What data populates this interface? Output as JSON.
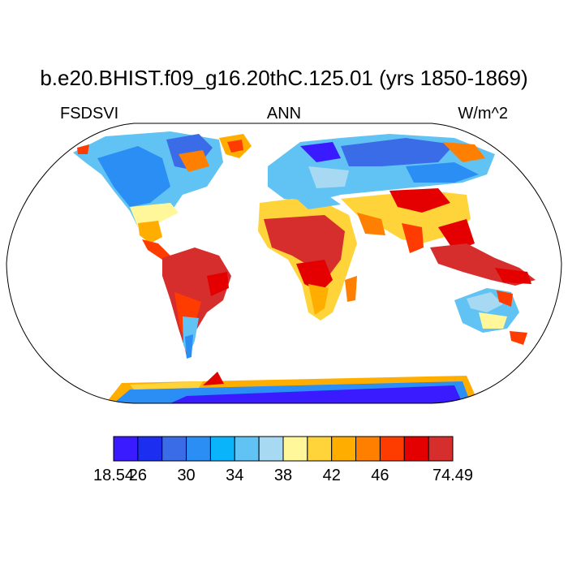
{
  "title": "b.e20.BHIST.f09_g16.20thC.125.01 (yrs 1850-1869)",
  "variable": "FSDSVI",
  "period": "ANN",
  "units": "W/m^2",
  "projection": "Robinson",
  "colorbar": {
    "levels": [
      18.54,
      26,
      28,
      30,
      32,
      34,
      36,
      38,
      40,
      42,
      44,
      46,
      48,
      74.49
    ],
    "tick_labels": [
      "18.54",
      "26",
      "30",
      "34",
      "38",
      "42",
      "46",
      "74.49"
    ],
    "tick_level_indices": [
      0,
      1,
      3,
      5,
      7,
      9,
      11,
      13
    ],
    "colors": [
      "#3a1aff",
      "#1c2ef0",
      "#3b6ce8",
      "#2a8ef5",
      "#0ab4fb",
      "#61c3f3",
      "#a8d9f2",
      "#fff79a",
      "#ffd43b",
      "#ffae00",
      "#ff7f00",
      "#ff3c00",
      "#e40000",
      "#d62d2d"
    ]
  },
  "colors": {
    "ocean": "#ffffff",
    "coast": "#000000",
    "background": "#ffffff"
  }
}
